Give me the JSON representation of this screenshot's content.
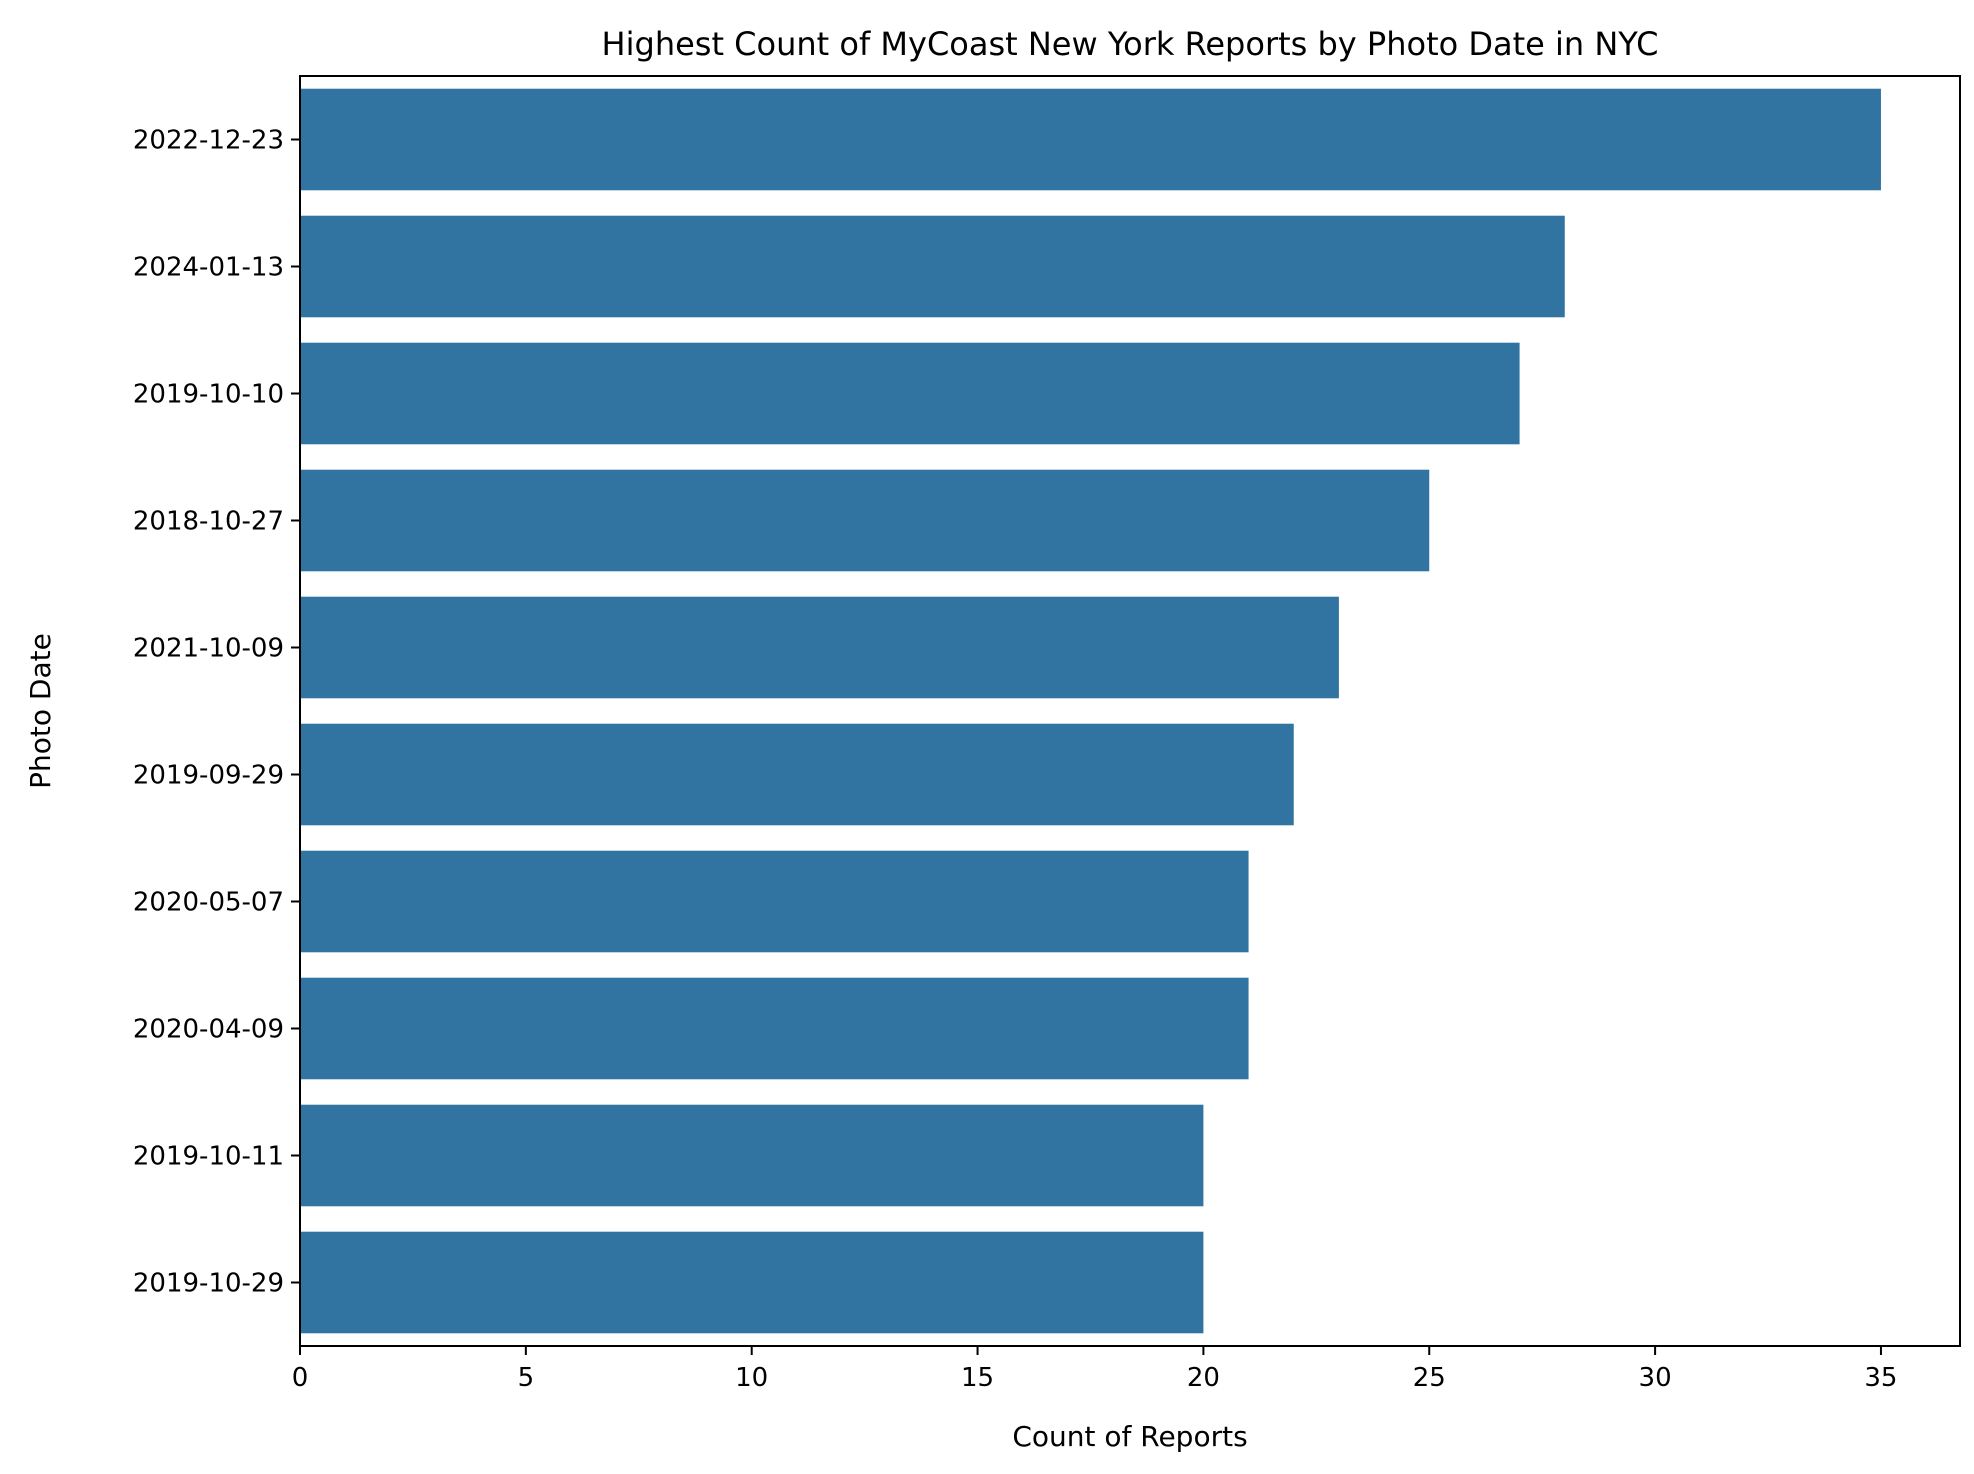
{
  "chart_data": {
    "type": "bar",
    "orientation": "horizontal",
    "title": "Highest Count of MyCoast New York Reports by Photo Date in NYC",
    "xlabel": "Count of Reports",
    "ylabel": "Photo Date",
    "categories": [
      "2022-12-23",
      "2024-01-13",
      "2019-10-10",
      "2018-10-27",
      "2021-10-09",
      "2019-09-29",
      "2020-05-07",
      "2020-04-09",
      "2019-10-11",
      "2019-10-29"
    ],
    "values": [
      35,
      28,
      27,
      25,
      23,
      22,
      21,
      21,
      20,
      20
    ],
    "xlim": [
      0,
      36.75
    ],
    "xticks": [
      0,
      5,
      10,
      15,
      20,
      25,
      30,
      35
    ],
    "grid": false,
    "legend": "none",
    "bar_color": "#3274a1"
  }
}
